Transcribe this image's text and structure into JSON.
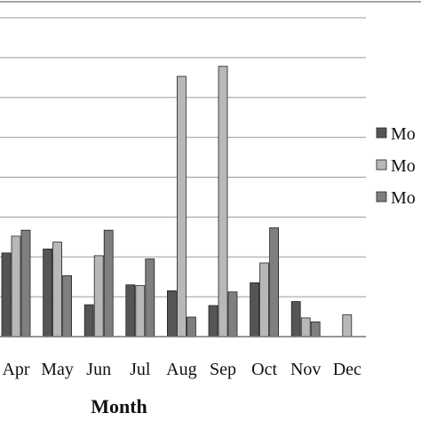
{
  "chart_data": {
    "type": "bar",
    "title": "",
    "xlabel": "Month",
    "ylabel": "",
    "categories": [
      "Apr",
      "May",
      "Jun",
      "Jul",
      "Aug",
      "Sep",
      "Oct",
      "Nov",
      "Dec"
    ],
    "series": [
      {
        "name": "Mo",
        "color": "#555555",
        "values": [
          21,
          22,
          8,
          13,
          11.5,
          7.8,
          13.5,
          8.8,
          0
        ]
      },
      {
        "name": "Mo",
        "color": "#b8b8b8",
        "values": [
          25.2,
          23.7,
          20.3,
          12.8,
          65.3,
          67.8,
          18.5,
          4.7,
          5.5
        ]
      },
      {
        "name": "Mo",
        "color": "#7f7f7f",
        "values": [
          26.7,
          15.3,
          26.7,
          19.5,
          4.9,
          11.2,
          27.3,
          3.7,
          0
        ]
      }
    ],
    "ylim": [
      0,
      80
    ],
    "ytick_step": 10,
    "grid": true,
    "legend": "right"
  }
}
